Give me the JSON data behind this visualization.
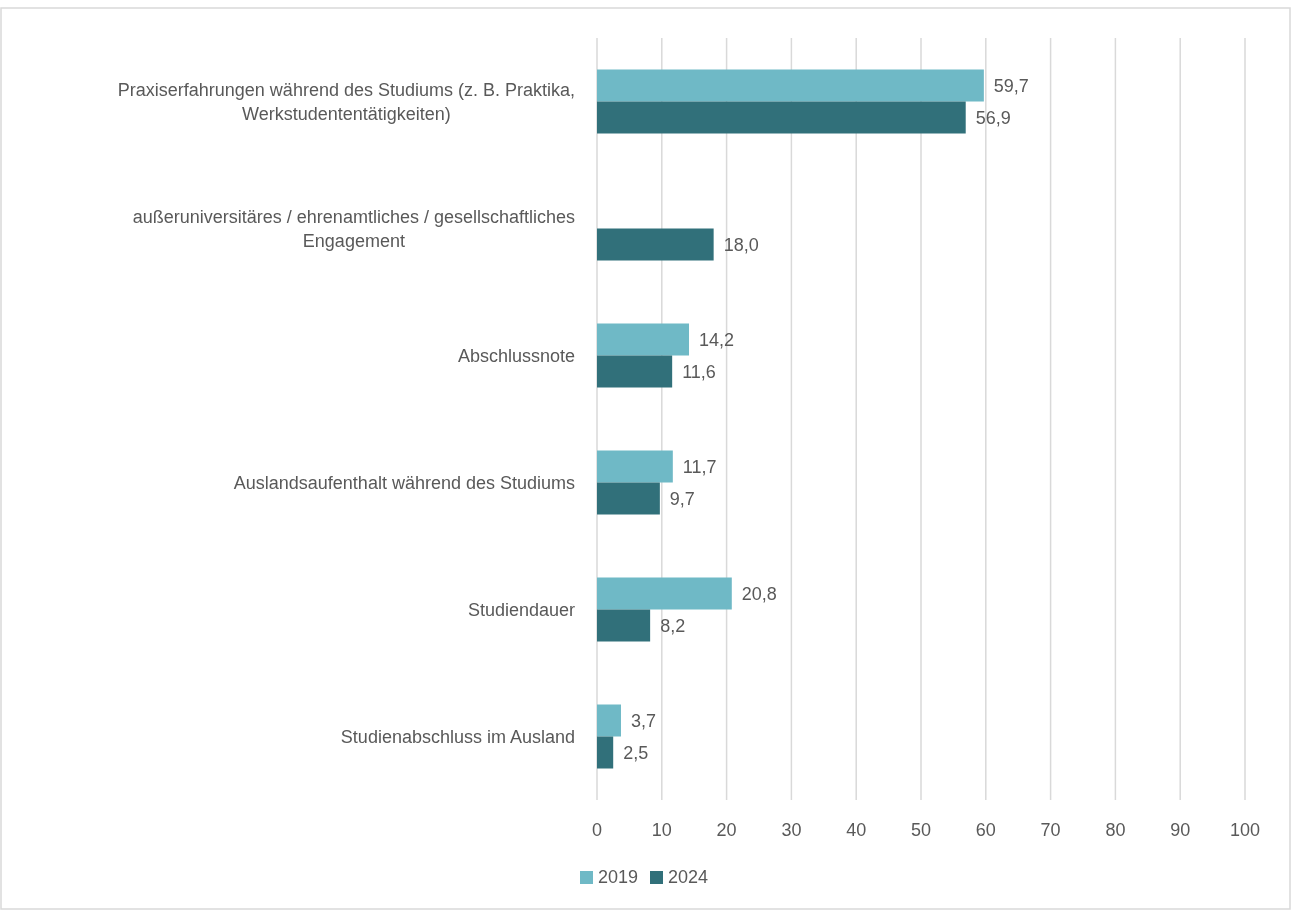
{
  "chart_data": {
    "type": "bar",
    "orientation": "horizontal",
    "categories": [
      "Praxiserfahrungen während des Studiums (z. B. Praktika, Werkstudententätigkeiten)",
      "außeruniversitäres / ehrenamtliches / gesellschaftliches Engagement",
      "Abschlussnote",
      "Auslandsaufenthalt während des Studiums",
      "Studiendauer",
      "Studienabschluss im Ausland"
    ],
    "series": [
      {
        "name": "2019",
        "color": "#6fb9c6",
        "values": [
          59.7,
          null,
          14.2,
          11.7,
          20.8,
          3.7
        ],
        "value_labels": [
          "59,7",
          null,
          "14,2",
          "11,7",
          "20,8",
          "3,7"
        ]
      },
      {
        "name": "2024",
        "color": "#31707a",
        "values": [
          56.9,
          18.0,
          11.6,
          9.7,
          8.2,
          2.5
        ],
        "value_labels": [
          "56,9",
          "18,0",
          "11,6",
          "9,7",
          "8,2",
          "2,5"
        ]
      }
    ],
    "xlim": [
      0,
      100
    ],
    "xticks": [
      0,
      10,
      20,
      30,
      40,
      50,
      60,
      70,
      80,
      90,
      100
    ],
    "grid": "x",
    "legend": "bottom"
  }
}
